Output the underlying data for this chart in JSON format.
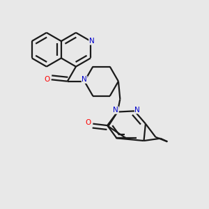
{
  "bg_color": "#e8e8e8",
  "N_color": "#0000cc",
  "O_color": "#ff0000",
  "bond_color": "#1a1a1a",
  "bond_lw": 1.6,
  "font_size": 7.5,
  "figsize": [
    3.0,
    3.0
  ],
  "dpi": 100,
  "xlim": [
    0.0,
    1.0
  ],
  "ylim": [
    0.0,
    1.0
  ]
}
